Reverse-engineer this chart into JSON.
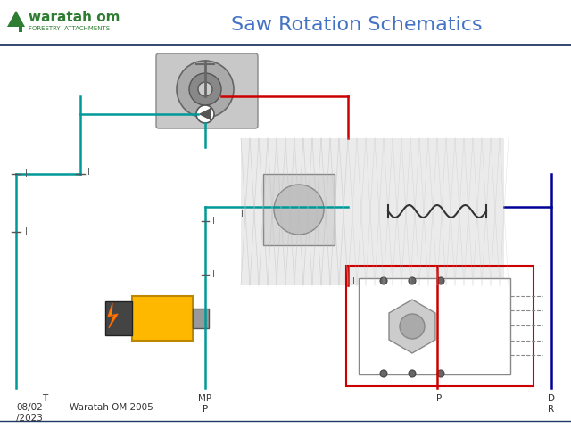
{
  "title": "Saw Rotation Schematics",
  "title_color": "#4472C4",
  "title_fontsize": 16,
  "header_line_color": "#1F3864",
  "logo_text": "waratah om",
  "logo_subtext": "FORESTRY  ATTACHMENTS",
  "logo_color": "#2E7D32",
  "logo_triangle_color": "#2E7D32",
  "footer_date": "08/02\n/2023",
  "footer_model": "Waratah OM 2005",
  "footer_labels": [
    "T",
    "MP\nP",
    "P",
    "D\nR"
  ],
  "bg_color": "#FFFFFF",
  "line_teal": "#009999",
  "line_red": "#CC0000",
  "line_blue": "#000099",
  "tick_label_color": "#555555",
  "schematic_bg": "#E8E8E8"
}
